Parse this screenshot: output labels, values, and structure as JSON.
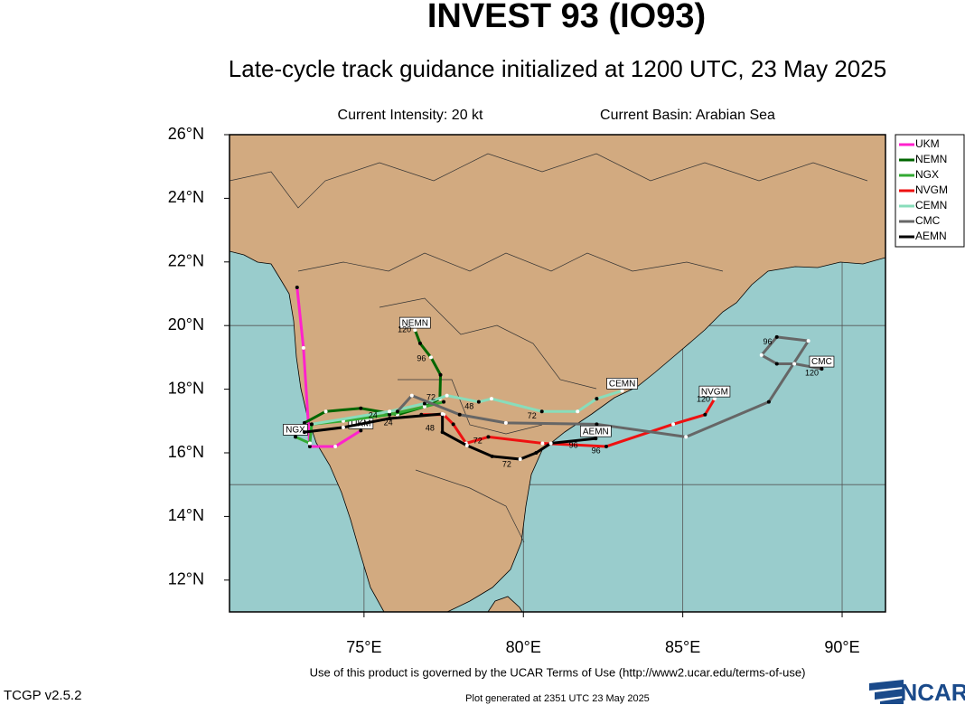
{
  "chart_data": {
    "type": "track",
    "title": "INVEST 93 (IO93)",
    "subtitle": "Late-cycle track guidance initialized at 1200 UTC, 23 May 2025",
    "intensity": "Current Intensity: 20 kt",
    "basin": "Current Basin: Arabian Sea",
    "xlim": [
      70.78,
      91.36
    ],
    "ylim": [
      11,
      26
    ],
    "xticks": [
      {
        "value": 75,
        "label": "75°E"
      },
      {
        "value": 80,
        "label": "80°E"
      },
      {
        "value": 85,
        "label": "85°E"
      },
      {
        "value": 90,
        "label": "90°E"
      }
    ],
    "yticks": [
      {
        "value": 12,
        "label": "12°N"
      },
      {
        "value": 14,
        "label": "14°N"
      },
      {
        "value": 16,
        "label": "16°N"
      },
      {
        "value": 18,
        "label": "18°N"
      },
      {
        "value": 20,
        "label": "20°N"
      },
      {
        "value": 22,
        "label": "22°N"
      },
      {
        "value": 24,
        "label": "24°N"
      },
      {
        "value": 26,
        "label": "26°N"
      }
    ],
    "xgrid": [
      75,
      80,
      85,
      90
    ],
    "ygrid": [
      15,
      20,
      25
    ],
    "series": [
      {
        "name": "UKM",
        "color": "#ff22cc",
        "x": [
          72.9,
          73.1,
          73.3,
          74.1,
          74.9
        ],
        "values": [
          21.2,
          19.3,
          16.2,
          16.2,
          16.7
        ]
      },
      {
        "name": "NEMN",
        "color": "#006600",
        "x": [
          73.13,
          73.8,
          74.9,
          76.05,
          76.9,
          77.38,
          77.4,
          77.1,
          76.76,
          76.6
        ],
        "values": [
          16.94,
          17.3,
          17.4,
          17.2,
          17.45,
          17.7,
          18.45,
          19.0,
          19.44,
          19.86
        ]
      },
      {
        "name": "NGX",
        "color": "#33aa33",
        "x": [
          77.5,
          76.9,
          75.8,
          74.35,
          73.36,
          73.3,
          72.85
        ],
        "values": [
          17.6,
          17.45,
          17.2,
          17.0,
          16.9,
          16.3,
          16.5
        ]
      },
      {
        "name": "NVGM",
        "color": "#ee1111",
        "x": [
          76.8,
          77.5,
          77.8,
          78.2,
          78.9,
          80.6,
          82.6,
          84.7,
          85.7,
          86.0
        ],
        "values": [
          17.2,
          17.2,
          16.9,
          16.3,
          16.5,
          16.3,
          16.2,
          16.9,
          17.2,
          17.7
        ]
      },
      {
        "name": "CEMN",
        "color": "#88ddbb",
        "x": [
          73.36,
          75.8,
          76.9,
          77.6,
          78.6,
          79.0,
          80.58,
          81.7,
          82.3,
          83.1
        ],
        "values": [
          16.9,
          17.3,
          17.55,
          17.8,
          17.6,
          17.7,
          17.3,
          17.3,
          17.7,
          17.95
        ]
      },
      {
        "name": "CMC",
        "color": "#666666",
        "x": [
          76.05,
          76.5,
          78.0,
          79.45,
          82.3,
          85.1,
          87.7,
          88.94,
          87.95,
          87.47,
          87.95,
          88.5,
          89.36
        ],
        "values": [
          17.3,
          17.8,
          17.2,
          16.94,
          16.9,
          16.5,
          17.6,
          19.52,
          19.64,
          19.07,
          18.8,
          18.8,
          18.64
        ]
      },
      {
        "name": "AEMN",
        "color": "#000000",
        "x": [
          73.13,
          74.35,
          75.8,
          77.46,
          77.46,
          78.23,
          79.02,
          79.9,
          80.4,
          80.86,
          82.27
        ],
        "values": [
          16.65,
          16.8,
          17.08,
          17.22,
          16.65,
          16.23,
          15.89,
          15.8,
          16.0,
          16.3,
          16.45
        ]
      }
    ],
    "hour_labels": [
      {
        "text": "120",
        "x": 76.27,
        "y": 19.86
      },
      {
        "text": "96",
        "x": 76.8,
        "y": 18.95
      },
      {
        "text": "72",
        "x": 77.1,
        "y": 17.73
      },
      {
        "text": "48",
        "x": 78.3,
        "y": 17.45
      },
      {
        "text": "72",
        "x": 80.27,
        "y": 17.14
      },
      {
        "text": "120",
        "x": 85.65,
        "y": 17.67
      },
      {
        "text": "96",
        "x": 82.28,
        "y": 16.06
      },
      {
        "text": "72",
        "x": 78.57,
        "y": 16.37
      },
      {
        "text": "48",
        "x": 77.07,
        "y": 16.77
      },
      {
        "text": "24",
        "x": 75.76,
        "y": 16.94
      },
      {
        "text": "120",
        "x": 89.05,
        "y": 18.5
      },
      {
        "text": "96",
        "x": 87.66,
        "y": 19.47
      },
      {
        "text": "72",
        "x": 79.48,
        "y": 15.63
      },
      {
        "text": "96",
        "x": 81.57,
        "y": 16.23
      },
      {
        "text": "24",
        "x": 75.28,
        "y": 17.16
      }
    ],
    "terms": "Use of this product is governed by the UCAR Terms of Use (http://www2.ucar.edu/terms-of-use)",
    "version": "TCGP v2.5.2",
    "generated": "Plot generated at 2351 UTC  23 May 2025",
    "logo": "NCAR"
  }
}
